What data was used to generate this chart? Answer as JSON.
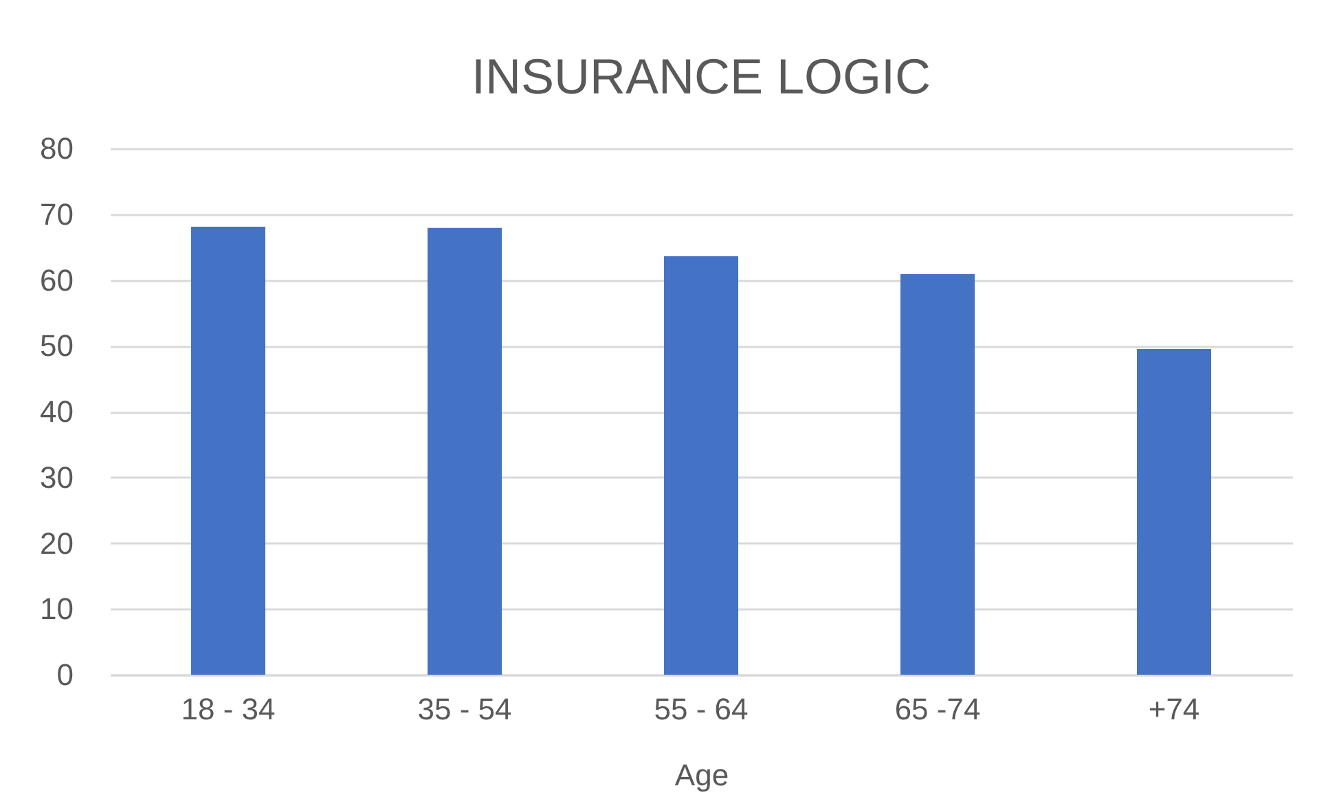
{
  "chart_data": {
    "type": "bar",
    "title": "INSURANCE LOGIC",
    "xlabel": "Age",
    "categories": [
      "18 - 34",
      "35 - 54",
      "55 - 64",
      "65 -74",
      "+74"
    ],
    "values": [
      68.1,
      67.9,
      63.6,
      60.9,
      49.5
    ],
    "color": "#4472c4",
    "ylim": [
      0,
      80
    ],
    "yticks": [
      0,
      10,
      20,
      30,
      40,
      50,
      60,
      70,
      80
    ],
    "grid": "y"
  }
}
